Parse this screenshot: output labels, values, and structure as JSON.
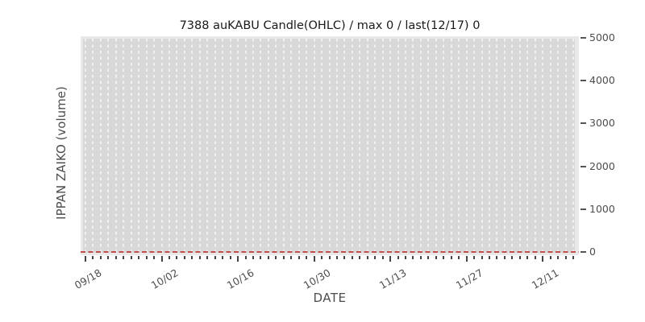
{
  "chart_data": {
    "type": "candlestick",
    "title": "7388 auKABU Candle(OHLC) / max 0 / last(12/17) 0",
    "xlabel": "DATE",
    "ylabel": "IPPAN ZAIKO (volume)",
    "x_major_tick_labels": [
      "09/18",
      "10/02",
      "10/16",
      "10/30",
      "11/13",
      "11/27",
      "12/11"
    ],
    "x_major_tick_interval_days": 10,
    "num_days": 65,
    "x_range": "09/18 to 12/17 (trading days)",
    "y_ticks": [
      "5000",
      "4000",
      "3000",
      "2000",
      "1000",
      "0"
    ],
    "y_tick_values": [
      5000,
      4000,
      3000,
      2000,
      1000,
      0
    ],
    "ylim": [
      0,
      5000
    ],
    "grid": "one vertical white dashed gridline per trading day",
    "legend_position": "none",
    "max_value": 0,
    "last_date": "12/17",
    "last_value": 0,
    "series": [
      {
        "name": "IPPAN ZAIKO volume",
        "type": "dashed-line",
        "color": "#c44e4e",
        "values": [
          0,
          0,
          0,
          0,
          0,
          0,
          0,
          0,
          0,
          0,
          0,
          0,
          0,
          0,
          0,
          0,
          0,
          0,
          0,
          0,
          0,
          0,
          0,
          0,
          0,
          0,
          0,
          0,
          0,
          0,
          0,
          0,
          0,
          0,
          0,
          0,
          0,
          0,
          0,
          0,
          0,
          0,
          0,
          0,
          0,
          0,
          0,
          0,
          0,
          0,
          0,
          0,
          0,
          0,
          0,
          0,
          0,
          0,
          0,
          0,
          0,
          0,
          0,
          0,
          0
        ]
      }
    ]
  },
  "colors": {
    "figure_bg": "#ffffff",
    "plot_bg": "#e9e9e9",
    "plot_inner_band": "#d8d8d8",
    "gridline": "#f1f1f1",
    "zero_line": "#c44e4e",
    "tick_mark": "#454545",
    "tick_label": "#4d4d4d",
    "title_text": "#1a1a1a"
  }
}
